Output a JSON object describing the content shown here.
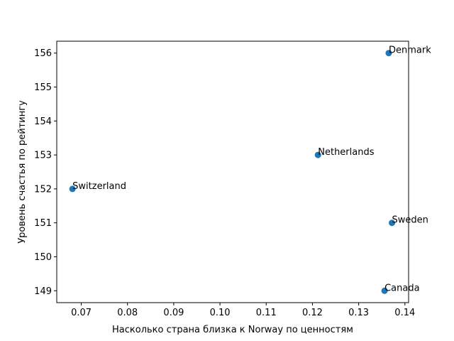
{
  "chart_data": {
    "type": "scatter",
    "title": "",
    "xlabel": "Насколько страна близка к Norway по ценностям",
    "ylabel": "Уровень счастья по рейтингу",
    "xlim": [
      0.0647,
      0.1408
    ],
    "ylim": [
      148.65,
      156.35
    ],
    "xticks": [
      0.07,
      0.08,
      0.09,
      0.1,
      0.11,
      0.12,
      0.13,
      0.14
    ],
    "xtick_labels": [
      "0.07",
      "0.08",
      "0.09",
      "0.10",
      "0.11",
      "0.12",
      "0.13",
      "0.14"
    ],
    "yticks": [
      149,
      150,
      151,
      152,
      153,
      154,
      155,
      156
    ],
    "ytick_labels": [
      "149",
      "150",
      "151",
      "152",
      "153",
      "154",
      "155",
      "156"
    ],
    "grid": false,
    "color": "#1f77b4",
    "points": [
      {
        "label": "Denmark",
        "x": 0.1365,
        "y": 156
      },
      {
        "label": "Netherlands",
        "x": 0.1212,
        "y": 153
      },
      {
        "label": "Switzerland",
        "x": 0.0681,
        "y": 152
      },
      {
        "label": "Sweden",
        "x": 0.1372,
        "y": 151
      },
      {
        "label": "Canada",
        "x": 0.1356,
        "y": 149
      }
    ]
  }
}
